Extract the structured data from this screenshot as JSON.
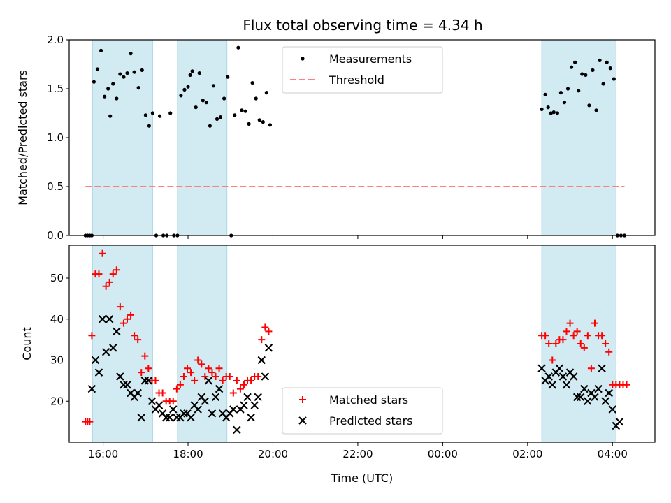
{
  "chart_data": {
    "type": "scatter",
    "title": "Flux total observing time = 4.34 h",
    "xlabel": "Time (UTC)",
    "x_axis": {
      "range": [
        "15:12",
        "05:00"
      ],
      "ticks": [
        "16:00",
        "18:00",
        "20:00",
        "22:00",
        "00:00",
        "02:00",
        "04:00"
      ]
    },
    "shaded_intervals": [
      [
        "15:45",
        "17:10"
      ],
      [
        "17:45",
        "18:55"
      ],
      [
        "02:20",
        "04:05"
      ]
    ],
    "shade_color": "#add8e6",
    "panels": [
      {
        "ylabel": "Matched/Predicted stars",
        "ylim": [
          0,
          2.0
        ],
        "yticks": [
          "0.0",
          "0.5",
          "1.0",
          "1.5",
          "2.0"
        ],
        "legend": "top-center",
        "series": [
          {
            "name": "Measurements",
            "marker": "dot",
            "color": "#000000",
            "points": [
              [
                "15:35",
                0
              ],
              [
                "15:38",
                0
              ],
              [
                "15:41",
                0
              ],
              [
                "15:44",
                0
              ],
              [
                "15:47",
                1.57
              ],
              [
                "15:52",
                1.7
              ],
              [
                "15:57",
                1.89
              ],
              [
                "16:02",
                1.42
              ],
              [
                "16:07",
                1.5
              ],
              [
                "16:10",
                1.22
              ],
              [
                "16:14",
                1.55
              ],
              [
                "16:19",
                1.4
              ],
              [
                "16:24",
                1.65
              ],
              [
                "16:29",
                1.62
              ],
              [
                "16:34",
                1.66
              ],
              [
                "16:39",
                1.86
              ],
              [
                "16:44",
                1.67
              ],
              [
                "16:50",
                1.51
              ],
              [
                "16:55",
                1.69
              ],
              [
                "17:00",
                1.23
              ],
              [
                "17:05",
                1.12
              ],
              [
                "17:10",
                1.25
              ],
              [
                "17:15",
                0
              ],
              [
                "17:20",
                1.22
              ],
              [
                "17:25",
                0
              ],
              [
                "17:30",
                0
              ],
              [
                "17:35",
                1.25
              ],
              [
                "17:40",
                0
              ],
              [
                "17:45",
                0
              ],
              [
                "17:50",
                1.43
              ],
              [
                "17:55",
                1.49
              ],
              [
                "18:00",
                1.52
              ],
              [
                "18:03",
                1.64
              ],
              [
                "18:06",
                1.68
              ],
              [
                "18:11",
                1.31
              ],
              [
                "18:16",
                1.66
              ],
              [
                "18:21",
                1.38
              ],
              [
                "18:26",
                1.36
              ],
              [
                "18:31",
                1.12
              ],
              [
                "18:36",
                1.53
              ],
              [
                "18:41",
                1.19
              ],
              [
                "18:46",
                1.21
              ],
              [
                "18:51",
                1.4
              ],
              [
                "18:56",
                1.62
              ],
              [
                "19:01",
                0
              ],
              [
                "19:06",
                1.23
              ],
              [
                "19:11",
                1.92
              ],
              [
                "19:16",
                1.28
              ],
              [
                "19:21",
                1.27
              ],
              [
                "19:26",
                1.14
              ],
              [
                "19:31",
                1.56
              ],
              [
                "19:36",
                1.4
              ],
              [
                "19:41",
                1.18
              ],
              [
                "19:46",
                1.16
              ],
              [
                "19:51",
                1.46
              ],
              [
                "19:56",
                1.13
              ],
              [
                "02:20",
                1.29
              ],
              [
                "02:25",
                1.44
              ],
              [
                "02:29",
                1.31
              ],
              [
                "02:33",
                1.25
              ],
              [
                "02:37",
                1.26
              ],
              [
                "02:42",
                1.25
              ],
              [
                "02:47",
                1.46
              ],
              [
                "02:52",
                1.36
              ],
              [
                "02:57",
                1.5
              ],
              [
                "03:02",
                1.72
              ],
              [
                "03:07",
                1.77
              ],
              [
                "03:12",
                1.48
              ],
              [
                "03:17",
                1.65
              ],
              [
                "03:22",
                1.64
              ],
              [
                "03:27",
                1.33
              ],
              [
                "03:32",
                1.69
              ],
              [
                "03:37",
                1.28
              ],
              [
                "03:42",
                1.79
              ],
              [
                "03:47",
                1.55
              ],
              [
                "03:52",
                1.77
              ],
              [
                "03:57",
                1.71
              ],
              [
                "04:02",
                1.6
              ],
              [
                "04:07",
                0
              ],
              [
                "04:12",
                0
              ],
              [
                "04:17",
                0
              ]
            ]
          },
          {
            "name": "Threshold",
            "marker": "dashed-line",
            "color": "#ff7f7f",
            "value": 0.5,
            "x": [
              "15:35",
              "04:17"
            ]
          }
        ]
      },
      {
        "ylabel": "Count",
        "ylim": [
          10,
          58
        ],
        "yticks": [
          "20",
          "30",
          "40",
          "50"
        ],
        "legend": "bottom-center",
        "series": [
          {
            "name": "Matched stars",
            "marker": "plus",
            "color": "#ff0000",
            "points": [
              [
                "15:35",
                15
              ],
              [
                "15:38",
                15
              ],
              [
                "15:41",
                15
              ],
              [
                "15:44",
                36
              ],
              [
                "15:49",
                51
              ],
              [
                "15:54",
                51
              ],
              [
                "15:59",
                56
              ],
              [
                "16:04",
                48
              ],
              [
                "16:09",
                49
              ],
              [
                "16:14",
                51
              ],
              [
                "16:19",
                52
              ],
              [
                "16:24",
                43
              ],
              [
                "16:29",
                39
              ],
              [
                "16:34",
                40
              ],
              [
                "16:39",
                41
              ],
              [
                "16:44",
                36
              ],
              [
                "16:49",
                35
              ],
              [
                "16:54",
                27
              ],
              [
                "16:59",
                31
              ],
              [
                "17:04",
                28
              ],
              [
                "17:09",
                25
              ],
              [
                "17:14",
                25
              ],
              [
                "17:19",
                22
              ],
              [
                "17:24",
                22
              ],
              [
                "17:29",
                20
              ],
              [
                "17:34",
                20
              ],
              [
                "17:39",
                20
              ],
              [
                "17:44",
                23
              ],
              [
                "17:49",
                24
              ],
              [
                "17:54",
                26
              ],
              [
                "17:59",
                28
              ],
              [
                "18:04",
                27
              ],
              [
                "18:09",
                25
              ],
              [
                "18:14",
                30
              ],
              [
                "18:19",
                29
              ],
              [
                "18:24",
                26
              ],
              [
                "18:29",
                28
              ],
              [
                "18:34",
                27
              ],
              [
                "18:39",
                26
              ],
              [
                "18:44",
                28
              ],
              [
                "18:49",
                25
              ],
              [
                "18:54",
                26
              ],
              [
                "18:59",
                26
              ],
              [
                "19:04",
                22
              ],
              [
                "19:09",
                25
              ],
              [
                "19:14",
                23
              ],
              [
                "19:19",
                24
              ],
              [
                "19:24",
                25
              ],
              [
                "19:29",
                25
              ],
              [
                "19:34",
                26
              ],
              [
                "19:39",
                26
              ],
              [
                "19:44",
                35
              ],
              [
                "19:49",
                38
              ],
              [
                "19:54",
                37
              ],
              [
                "02:20",
                36
              ],
              [
                "02:25",
                36
              ],
              [
                "02:30",
                34
              ],
              [
                "02:35",
                30
              ],
              [
                "02:40",
                34
              ],
              [
                "02:45",
                35
              ],
              [
                "02:50",
                35
              ],
              [
                "02:55",
                37
              ],
              [
                "03:00",
                39
              ],
              [
                "03:05",
                36
              ],
              [
                "03:10",
                37
              ],
              [
                "03:15",
                34
              ],
              [
                "03:20",
                33
              ],
              [
                "03:25",
                36
              ],
              [
                "03:30",
                28
              ],
              [
                "03:35",
                39
              ],
              [
                "03:40",
                36
              ],
              [
                "03:45",
                36
              ],
              [
                "03:50",
                34
              ],
              [
                "03:55",
                32
              ],
              [
                "04:00",
                24
              ],
              [
                "04:05",
                24
              ],
              [
                "04:10",
                24
              ],
              [
                "04:15",
                24
              ],
              [
                "04:20",
                24
              ]
            ]
          },
          {
            "name": "Predicted stars",
            "marker": "x",
            "color": "#000000",
            "points": [
              [
                "15:44",
                23
              ],
              [
                "15:49",
                30
              ],
              [
                "15:54",
                27
              ],
              [
                "15:59",
                40
              ],
              [
                "16:04",
                32
              ],
              [
                "16:09",
                40
              ],
              [
                "16:14",
                33
              ],
              [
                "16:19",
                37
              ],
              [
                "16:24",
                26
              ],
              [
                "16:29",
                24
              ],
              [
                "16:34",
                24
              ],
              [
                "16:39",
                22
              ],
              [
                "16:44",
                21
              ],
              [
                "16:49",
                22
              ],
              [
                "16:54",
                16
              ],
              [
                "16:59",
                25
              ],
              [
                "17:04",
                25
              ],
              [
                "17:09",
                20
              ],
              [
                "17:14",
                18
              ],
              [
                "17:19",
                19
              ],
              [
                "17:24",
                17
              ],
              [
                "17:29",
                16
              ],
              [
                "17:34",
                16
              ],
              [
                "17:39",
                18
              ],
              [
                "17:44",
                16
              ],
              [
                "17:49",
                16
              ],
              [
                "17:54",
                17
              ],
              [
                "17:59",
                17
              ],
              [
                "18:04",
                16
              ],
              [
                "18:09",
                19
              ],
              [
                "18:14",
                18
              ],
              [
                "18:19",
                21
              ],
              [
                "18:24",
                20
              ],
              [
                "18:29",
                25
              ],
              [
                "18:34",
                17
              ],
              [
                "18:39",
                21
              ],
              [
                "18:44",
                23
              ],
              [
                "18:49",
                17
              ],
              [
                "18:54",
                16
              ],
              [
                "18:59",
                17
              ],
              [
                "19:04",
                18
              ],
              [
                "19:09",
                13
              ],
              [
                "19:14",
                18
              ],
              [
                "19:19",
                19
              ],
              [
                "19:24",
                21
              ],
              [
                "19:29",
                16
              ],
              [
                "19:34",
                19
              ],
              [
                "19:39",
                21
              ],
              [
                "19:44",
                30
              ],
              [
                "19:49",
                26
              ],
              [
                "19:54",
                33
              ],
              [
                "02:20",
                28
              ],
              [
                "02:25",
                25
              ],
              [
                "02:30",
                26
              ],
              [
                "02:35",
                24
              ],
              [
                "02:40",
                27
              ],
              [
                "02:45",
                28
              ],
              [
                "02:50",
                26
              ],
              [
                "02:55",
                24
              ],
              [
                "03:00",
                27
              ],
              [
                "03:05",
                26
              ],
              [
                "03:10",
                21
              ],
              [
                "03:15",
                21
              ],
              [
                "03:20",
                23
              ],
              [
                "03:25",
                20
              ],
              [
                "03:30",
                22
              ],
              [
                "03:35",
                21
              ],
              [
                "03:40",
                23
              ],
              [
                "03:45",
                28
              ],
              [
                "03:50",
                20
              ],
              [
                "03:55",
                22
              ],
              [
                "04:00",
                18
              ],
              [
                "04:05",
                14
              ],
              [
                "04:10",
                15
              ]
            ]
          }
        ]
      }
    ]
  }
}
